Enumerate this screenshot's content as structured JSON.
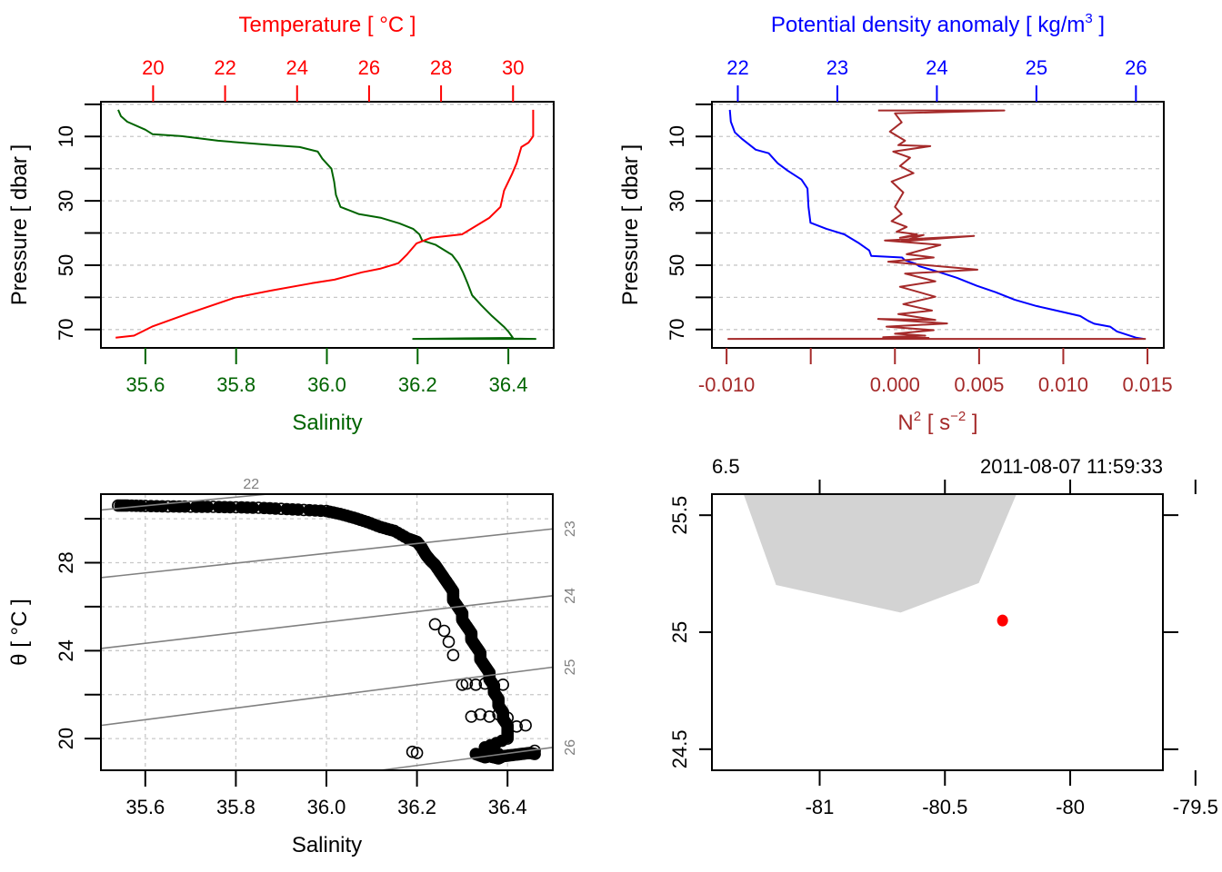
{
  "chart_data": [
    {
      "id": "profile_TS",
      "type": "line",
      "ylabel": "Pressure [ dbar ]",
      "ylim": [
        75.7,
        -0.8
      ],
      "yticks": [
        0,
        10,
        20,
        30,
        40,
        50,
        60,
        70
      ],
      "ytick_labels": [
        "",
        "10",
        "",
        "30",
        "",
        "50",
        "",
        "70"
      ],
      "grid": true,
      "top_axis": {
        "label": "Temperature [ °C ]",
        "color": "#ff0000",
        "lim": [
          18.55,
          31.13
        ],
        "ticks": [
          20,
          22,
          24,
          26,
          28,
          30
        ],
        "tick_labels": [
          "20",
          "22",
          "24",
          "26",
          "28",
          "30"
        ]
      },
      "bottom_axis": {
        "label": "Salinity",
        "color": "#006400",
        "lim": [
          35.502,
          36.5
        ],
        "ticks": [
          35.6,
          35.8,
          36.0,
          36.2,
          36.4
        ],
        "tick_labels": [
          "35.6",
          "35.8",
          "36.0",
          "36.2",
          "36.4"
        ]
      },
      "series": [
        {
          "name": "Salinity",
          "axis": "bottom",
          "color": "#006400",
          "x": [
            35.54,
            35.546,
            35.56,
            35.6,
            35.616,
            35.68,
            35.76,
            35.88,
            35.94,
            35.98,
            35.99,
            36.01,
            36.016,
            36.02,
            36.03,
            36.07,
            36.12,
            36.16,
            36.19,
            36.204,
            36.21,
            36.24,
            36.276,
            36.29,
            36.3,
            36.31,
            36.32,
            36.34,
            36.364,
            36.39,
            36.4,
            36.41,
            36.19,
            36.46,
            36.41
          ],
          "p": [
            1.7,
            3.7,
            5.4,
            7.9,
            9.3,
            9.9,
            11.3,
            12.7,
            13.3,
            14.7,
            16.9,
            20.0,
            24.0,
            28.2,
            31.9,
            34.1,
            35.3,
            37.0,
            38.7,
            40.4,
            42.3,
            43.7,
            46.8,
            49.4,
            52.2,
            55.6,
            59.3,
            62.4,
            65.8,
            69.1,
            70.6,
            72.6,
            72.9,
            72.9,
            72.8
          ]
        },
        {
          "name": "Temperature",
          "axis": "top",
          "color": "#ff0000",
          "x": [
            30.56,
            30.56,
            30.43,
            30.23,
            30.1,
            29.97,
            29.75,
            29.65,
            29.34,
            28.84,
            28.58,
            27.72,
            27.32,
            27.06,
            26.81,
            26.3,
            25.8,
            25.04,
            24.41,
            23.28,
            22.27,
            21.01,
            19.97,
            19.47,
            18.96
          ],
          "p": [
            1.7,
            9.9,
            11.9,
            13.3,
            18.3,
            21.7,
            26.8,
            31.9,
            35.3,
            38.7,
            40.4,
            41.5,
            43.2,
            46.6,
            49.4,
            51.1,
            52.2,
            54.5,
            55.6,
            57.9,
            60.1,
            64.9,
            69.1,
            71.9,
            72.5
          ]
        }
      ]
    },
    {
      "id": "profile_density_N2",
      "type": "line",
      "ylabel": "Pressure [ dbar ]",
      "ylim": [
        75.7,
        -0.8
      ],
      "yticks": [
        0,
        10,
        20,
        30,
        40,
        50,
        60,
        70
      ],
      "ytick_labels": [
        "",
        "10",
        "",
        "30",
        "",
        "50",
        "",
        "70"
      ],
      "grid": true,
      "top_axis": {
        "label": "Potential density anomaly [ kg/m³ ]",
        "label_main": "Potential density anomaly [ kg/m",
        "label_sup": "3",
        "label_end": " ]",
        "color": "#0000ff",
        "lim": [
          21.74,
          26.28
        ],
        "ticks": [
          22,
          23,
          24,
          25,
          26
        ],
        "tick_labels": [
          "22",
          "23",
          "24",
          "25",
          "26"
        ]
      },
      "bottom_axis": {
        "label": "N² [ s⁻² ]",
        "label_main": "N",
        "label_sup": "2",
        "label_mid": " [ s",
        "label_sup2": "−2",
        "label_end": " ]",
        "color": "#a52a2a",
        "lim": [
          -0.01087,
          0.01597
        ],
        "ticks": [
          -0.01,
          -0.005,
          0.0,
          0.005,
          0.01,
          0.015
        ],
        "tick_labels": [
          "-0.010",
          "",
          "0.000",
          "0.005",
          "0.010",
          "0.015"
        ]
      },
      "series": [
        {
          "name": "Potential density anomaly",
          "axis": "top",
          "color": "#0000ff",
          "x": [
            21.92,
            21.93,
            21.97,
            22.04,
            22.18,
            22.31,
            22.4,
            22.5,
            22.64,
            22.7,
            22.71,
            22.73,
            22.89,
            23.07,
            23.22,
            23.32,
            23.34,
            23.65,
            23.68,
            23.79,
            23.82,
            24.03,
            24.2,
            24.4,
            24.59,
            24.78,
            25.0,
            25.13,
            25.44,
            25.52,
            25.58,
            25.74,
            25.81,
            26.0,
            26.08
          ],
          "p": [
            1.7,
            5.4,
            8.7,
            10.7,
            14.1,
            15.2,
            18.3,
            20.6,
            23.4,
            26.2,
            31.9,
            36.8,
            38.7,
            40.4,
            43.2,
            45.4,
            47.1,
            47.6,
            48.5,
            49.6,
            50.3,
            52.2,
            53.9,
            56.4,
            58.4,
            60.7,
            62.7,
            63.6,
            65.8,
            67.3,
            68.2,
            69.1,
            70.6,
            72.5,
            72.9
          ]
        },
        {
          "name": "N2",
          "axis": "bottom",
          "color": "#a52a2a",
          "x": [
            -0.001,
            0.0065,
            0.0,
            0.0004,
            -0.0003,
            0.0006,
            0.0002,
            0.0021,
            -0.0001,
            0.0009,
            0.0003,
            0.0011,
            -0.0002,
            0.0005,
            0.0,
            0.0004,
            -0.0002,
            0.0007,
            0.0001,
            0.0013,
            0.0003,
            0.0017,
            0.0004,
            0.0047,
            -0.0006,
            0.0027,
            0.0007,
            0.0023,
            -0.0004,
            0.0049,
            0.0006,
            0.0024,
            0.0003,
            0.0024,
            0.0005,
            0.0022,
            0.0002,
            0.0024,
            -0.001,
            0.0031,
            -0.0005,
            0.0023,
            0.0,
            0.0018,
            -0.0007,
            0.002,
            0.0004,
            -0.0099,
            0.0149
          ],
          "p": [
            1.9,
            1.9,
            2.8,
            5.6,
            8.5,
            11.3,
            12.7,
            13.0,
            14.7,
            16.6,
            19.2,
            21.4,
            24.0,
            27.4,
            31.9,
            34.1,
            36.3,
            38.1,
            39.6,
            40.4,
            41.5,
            40.6,
            42.6,
            40.9,
            42.3,
            43.7,
            46.6,
            47.6,
            48.9,
            51.4,
            52.6,
            55.0,
            56.7,
            59.8,
            62.1,
            64.1,
            65.2,
            67.0,
            66.7,
            68.1,
            69.1,
            70.2,
            71.3,
            71.9,
            72.4,
            72.6,
            72.8,
            72.9,
            72.9
          ]
        }
      ]
    },
    {
      "id": "TS_diagram",
      "type": "scatter",
      "xlabel": "Salinity",
      "ylabel": "θ [ °C ]",
      "xlim": [
        35.502,
        36.5
      ],
      "ylim": [
        18.56,
        31.12
      ],
      "xticks": [
        35.6,
        35.8,
        36.0,
        36.2,
        36.4
      ],
      "xtick_labels": [
        "35.6",
        "35.8",
        "36.0",
        "36.2",
        "36.4"
      ],
      "yticks": [
        20,
        22,
        24,
        26,
        28,
        30
      ],
      "ytick_labels": [
        "20",
        "",
        "24",
        "",
        "28",
        ""
      ],
      "grid": true,
      "marker": "open-circle",
      "isopycnal_color": "#808080",
      "isopycnals": [
        {
          "label": "22",
          "S0": 35.502,
          "T0": 30.4,
          "S1": 35.87,
          "T1": 31.12
        },
        {
          "label": "23",
          "S0": 35.502,
          "T0": 27.32,
          "S1": 36.5,
          "T1": 29.54
        },
        {
          "label": "24",
          "S0": 35.502,
          "T0": 24.1,
          "S1": 36.5,
          "T1": 26.5
        },
        {
          "label": "25",
          "S0": 35.502,
          "T0": 20.6,
          "S1": 36.5,
          "T1": 23.25
        },
        {
          "label": "26",
          "S0": 36.12,
          "T0": 18.56,
          "S1": 36.5,
          "T1": 19.6
        }
      ],
      "points_S": [
        35.54,
        35.56,
        35.6,
        35.65,
        35.7,
        35.75,
        35.8,
        35.85,
        35.9,
        35.95,
        36.0,
        36.03,
        36.06,
        36.09,
        36.12,
        36.15,
        36.18,
        36.2,
        36.21,
        36.22,
        36.23,
        36.24,
        36.25,
        36.26,
        36.27,
        36.28,
        36.28,
        36.29,
        36.3,
        36.3,
        36.31,
        36.32,
        36.32,
        36.33,
        36.34,
        36.34,
        36.35,
        36.36,
        36.36,
        36.37,
        36.37,
        36.38,
        36.38,
        36.39,
        36.39,
        36.4,
        36.4,
        36.4,
        36.35,
        36.36,
        36.37,
        36.38,
        36.36,
        36.35,
        36.33,
        36.34,
        36.36,
        36.37,
        36.38,
        36.39,
        36.41,
        36.43,
        36.45,
        36.46,
        36.3,
        36.31,
        36.33,
        36.35,
        36.37,
        36.39,
        36.28,
        36.27,
        36.26,
        36.24,
        36.2,
        36.19,
        36.32,
        36.34,
        36.36,
        36.38,
        36.4,
        36.42,
        36.44,
        36.46,
        36.35,
        36.37,
        36.39
      ],
      "points_T": [
        30.6,
        30.6,
        30.58,
        30.56,
        30.55,
        30.54,
        30.52,
        30.5,
        30.45,
        30.4,
        30.35,
        30.22,
        30.05,
        29.85,
        29.62,
        29.45,
        29.1,
        28.95,
        28.7,
        28.35,
        28.1,
        27.9,
        27.6,
        27.3,
        27.0,
        26.7,
        26.3,
        26.0,
        25.7,
        25.4,
        25.1,
        24.8,
        24.5,
        24.2,
        23.9,
        23.6,
        23.3,
        23.0,
        22.7,
        22.4,
        22.1,
        21.8,
        21.5,
        21.2,
        20.9,
        20.6,
        20.3,
        20.0,
        19.6,
        19.5,
        19.4,
        19.3,
        19.2,
        19.15,
        19.3,
        19.25,
        19.2,
        19.15,
        19.1,
        19.2,
        19.25,
        19.3,
        19.35,
        19.3,
        22.45,
        22.5,
        22.45,
        22.5,
        22.4,
        22.45,
        23.8,
        24.4,
        24.9,
        25.2,
        19.35,
        19.4,
        21.0,
        21.1,
        21.0,
        21.1,
        20.95,
        20.55,
        20.6,
        19.45,
        19.25,
        19.3,
        19.2
      ]
    },
    {
      "id": "station_map",
      "type": "scatter",
      "xlim": [
        -81.43,
        -79.63
      ],
      "ylim": [
        24.41,
        25.59
      ],
      "xticks": [
        -81,
        -80.5,
        -80,
        -79.5
      ],
      "xtick_labels": [
        "-81",
        "-80.5",
        "-80",
        "-79.5"
      ],
      "yticks": [
        24.5,
        25,
        25.5
      ],
      "ytick_labels": [
        "24.5",
        "25",
        "25.5"
      ],
      "top_left_label": "6.5",
      "top_right_label": "2011-08-07 11:59:33",
      "land_color": "#d3d3d3",
      "coastline_lon": [
        -81.392,
        -81.327,
        -81.174,
        -80.677,
        -80.365,
        -80.179
      ],
      "coastline_lat": [
        25.68,
        25.66,
        25.202,
        25.084,
        25.21,
        25.68
      ],
      "station": {
        "lon": -80.27,
        "lat": 25.05,
        "color": "#ff0000"
      }
    }
  ]
}
